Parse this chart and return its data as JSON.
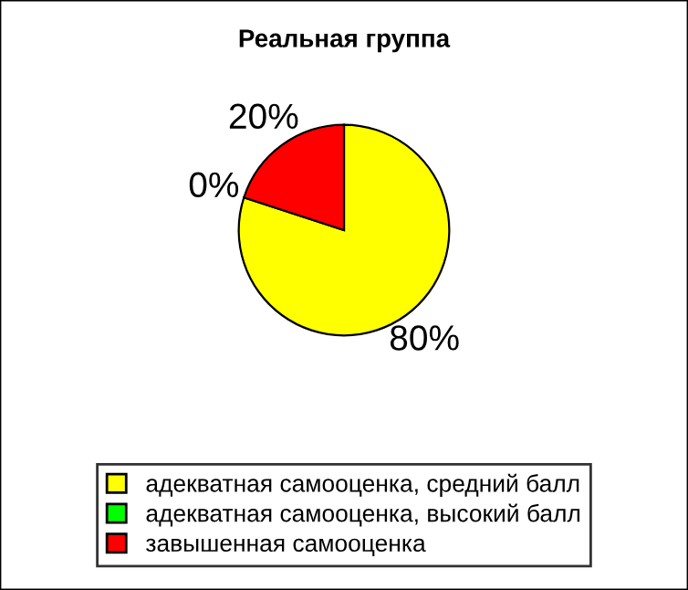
{
  "chart_data": {
    "type": "pie",
    "title": "Реальная группа",
    "categories": [
      "адекватная самооценка, средний балл",
      "адекватная самооценка, высокий балл",
      "завышенная самооценка"
    ],
    "values": [
      80,
      0,
      20
    ],
    "colors": [
      "#ffff00",
      "#00ff00",
      "#ff0000"
    ],
    "value_labels": [
      "80%",
      "0%",
      "20%"
    ],
    "legend": "bottom"
  }
}
